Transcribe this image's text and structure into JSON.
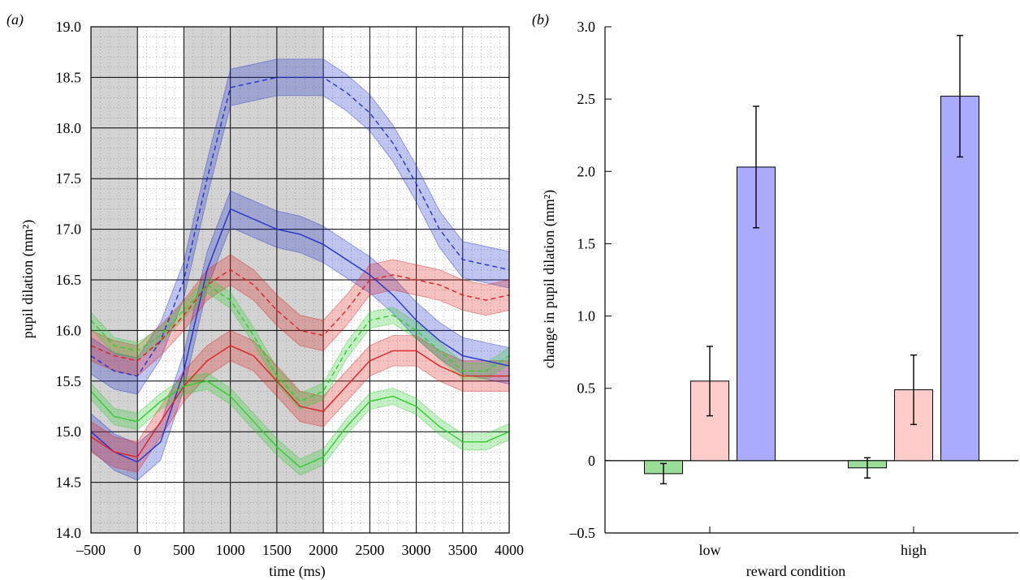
{
  "chart_data": [
    {
      "type": "line",
      "panel_label": "(a)",
      "xlabel": "time (ms)",
      "ylabel": "pupil dilation (mm²)",
      "xlim": [
        -500,
        4000
      ],
      "ylim": [
        14.0,
        19.0
      ],
      "x_ticks": [
        "–500",
        "0",
        "500",
        "1000",
        "1500",
        "2000",
        "2500",
        "3000",
        "3500",
        "4000"
      ],
      "x_tick_values": [
        -500,
        0,
        500,
        1000,
        1500,
        2000,
        2500,
        3000,
        3500,
        4000
      ],
      "y_ticks": [
        "14.0",
        "14.5",
        "15.0",
        "15.5",
        "16.0",
        "16.5",
        "17.0",
        "17.5",
        "18.0",
        "18.5",
        "19.0"
      ],
      "y_tick_values": [
        14.0,
        14.5,
        15.0,
        15.5,
        16.0,
        16.5,
        17.0,
        17.5,
        18.0,
        18.5,
        19.0
      ],
      "grid": true,
      "shaded_intervals": [
        [
          -500,
          0
        ],
        [
          500,
          2000
        ]
      ],
      "colors": {
        "green": "#33cc33",
        "red": "#dd2222",
        "blue": "#2233cc",
        "shade": "#d3d3d3"
      },
      "series": [
        {
          "color": "blue",
          "dash": true,
          "err": 0.18,
          "x": [
            -500,
            -250,
            0,
            250,
            500,
            750,
            1000,
            1250,
            1500,
            1750,
            2000,
            2250,
            2500,
            2750,
            3000,
            3250,
            3500,
            3750,
            4000
          ],
          "y": [
            15.75,
            15.6,
            15.55,
            15.9,
            16.5,
            17.5,
            18.4,
            18.45,
            18.5,
            18.5,
            18.5,
            18.35,
            18.15,
            17.85,
            17.45,
            17.0,
            16.7,
            16.65,
            16.6
          ]
        },
        {
          "color": "blue",
          "dash": false,
          "err": 0.18,
          "x": [
            -500,
            -250,
            0,
            250,
            500,
            750,
            1000,
            1250,
            1500,
            1750,
            2000,
            2250,
            2500,
            2750,
            3000,
            3250,
            3500,
            3750,
            4000
          ],
          "y": [
            15.0,
            14.8,
            14.7,
            14.9,
            15.6,
            16.6,
            17.2,
            17.1,
            17.0,
            16.95,
            16.85,
            16.7,
            16.55,
            16.35,
            16.1,
            15.9,
            15.75,
            15.7,
            15.65
          ]
        },
        {
          "color": "red",
          "dash": true,
          "err": 0.15,
          "x": [
            -500,
            -250,
            0,
            250,
            500,
            750,
            1000,
            1250,
            1500,
            1750,
            2000,
            2250,
            2500,
            2750,
            3000,
            3250,
            3500,
            3750,
            4000
          ],
          "y": [
            15.85,
            15.75,
            15.7,
            15.9,
            16.15,
            16.45,
            16.6,
            16.45,
            16.2,
            16.0,
            15.95,
            16.2,
            16.5,
            16.55,
            16.5,
            16.45,
            16.35,
            16.3,
            16.35
          ]
        },
        {
          "color": "red",
          "dash": false,
          "err": 0.15,
          "x": [
            -500,
            -250,
            0,
            250,
            500,
            750,
            1000,
            1250,
            1500,
            1750,
            2000,
            2250,
            2500,
            2750,
            3000,
            3250,
            3500,
            3750,
            4000
          ],
          "y": [
            14.95,
            14.8,
            14.75,
            15.1,
            15.45,
            15.7,
            15.85,
            15.75,
            15.5,
            15.25,
            15.2,
            15.45,
            15.7,
            15.8,
            15.8,
            15.65,
            15.55,
            15.55,
            15.55
          ]
        },
        {
          "color": "green",
          "dash": true,
          "err": 0.08,
          "x": [
            -500,
            -250,
            0,
            250,
            500,
            750,
            1000,
            1250,
            1500,
            1750,
            2000,
            2250,
            2500,
            2750,
            3000,
            3250,
            3500,
            3750,
            4000
          ],
          "y": [
            16.1,
            15.85,
            15.8,
            15.95,
            16.2,
            16.45,
            16.3,
            15.95,
            15.55,
            15.3,
            15.4,
            15.8,
            16.1,
            16.15,
            16.0,
            15.8,
            15.6,
            15.6,
            15.75
          ]
        },
        {
          "color": "green",
          "dash": false,
          "err": 0.08,
          "x": [
            -500,
            -250,
            0,
            250,
            500,
            750,
            1000,
            1250,
            1500,
            1750,
            2000,
            2250,
            2500,
            2750,
            3000,
            3250,
            3500,
            3750,
            4000
          ],
          "y": [
            15.4,
            15.15,
            15.1,
            15.3,
            15.45,
            15.5,
            15.35,
            15.1,
            14.85,
            14.65,
            14.75,
            15.05,
            15.3,
            15.35,
            15.25,
            15.05,
            14.9,
            14.9,
            15.0
          ]
        }
      ]
    },
    {
      "type": "bar",
      "panel_label": "(b)",
      "xlabel": "reward condition",
      "ylabel": "change in pupil dilation (mm²)",
      "ylim": [
        -0.5,
        3.0
      ],
      "y_ticks": [
        "–0.5",
        "0",
        "0.5",
        "1.0",
        "1.5",
        "2.0",
        "2.5",
        "3.0"
      ],
      "y_tick_values": [
        -0.5,
        0,
        0.5,
        1.0,
        1.5,
        2.0,
        2.5,
        3.0
      ],
      "categories": [
        "low",
        "high"
      ],
      "colors": [
        "#99dd99",
        "#ffcccc",
        "#aaaaff"
      ],
      "series": [
        {
          "values": [
            -0.09,
            -0.05
          ],
          "errors": [
            0.07,
            0.07
          ]
        },
        {
          "values": [
            0.55,
            0.49
          ],
          "errors": [
            0.24,
            0.24
          ]
        },
        {
          "values": [
            2.03,
            2.52
          ],
          "errors": [
            0.42,
            0.42
          ]
        }
      ],
      "grid": false
    }
  ]
}
